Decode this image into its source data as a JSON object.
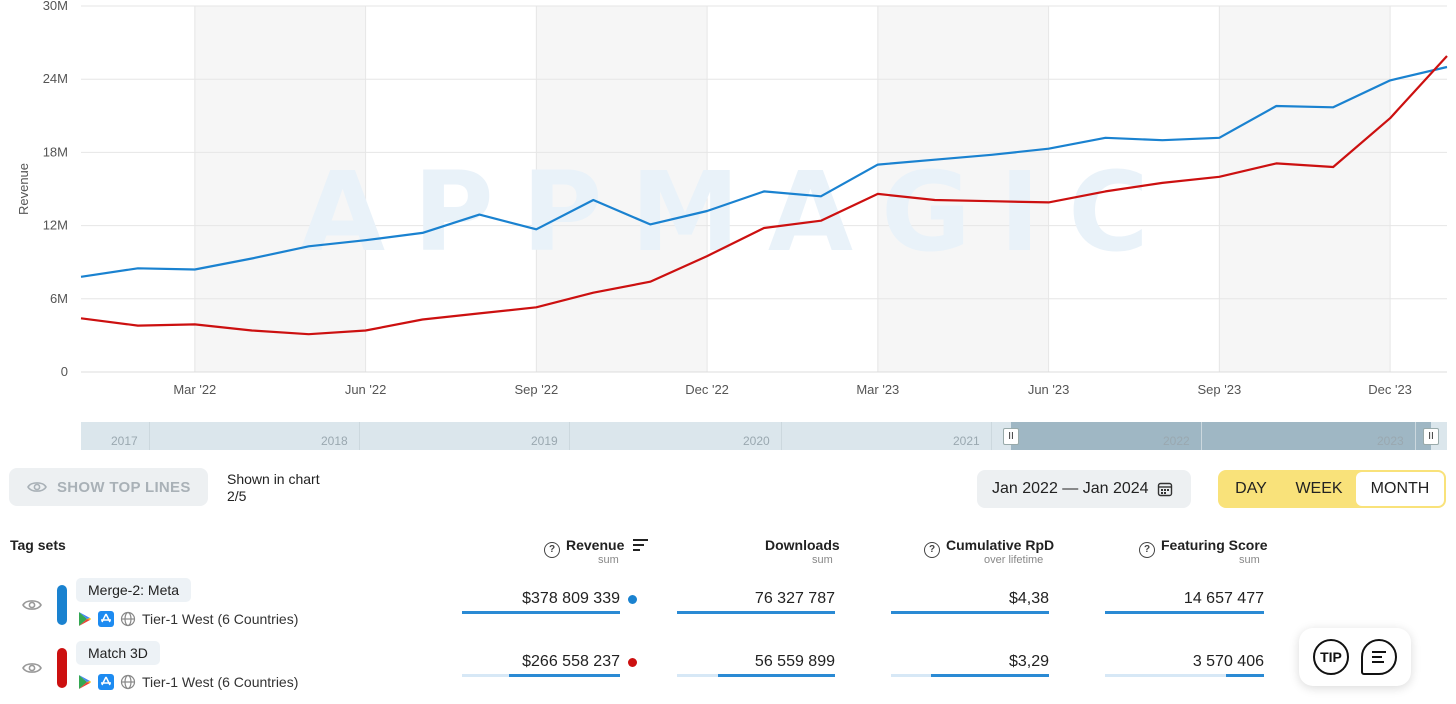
{
  "chart_data": {
    "type": "line",
    "ylabel": "Revenue",
    "ylim": [
      0,
      30000000
    ],
    "y_ticks": [
      "0",
      "6M",
      "12M",
      "18M",
      "24M",
      "30M"
    ],
    "y_tick_values": [
      0,
      6000000,
      12000000,
      18000000,
      24000000,
      30000000
    ],
    "x_tick_labels": [
      "Mar '22",
      "Jun '22",
      "Sep '22",
      "Dec '22",
      "Mar '23",
      "Jun '23",
      "Sep '23",
      "Dec '23"
    ],
    "x": [
      "2022-01",
      "2022-02",
      "2022-03",
      "2022-04",
      "2022-05",
      "2022-06",
      "2022-07",
      "2022-08",
      "2022-09",
      "2022-10",
      "2022-11",
      "2022-12",
      "2023-01",
      "2023-02",
      "2023-03",
      "2023-04",
      "2023-05",
      "2023-06",
      "2023-07",
      "2023-08",
      "2023-09",
      "2023-10",
      "2023-11",
      "2023-12",
      "2024-01"
    ],
    "series": [
      {
        "name": "Merge-2: Meta",
        "color": "#1a82d0",
        "values": [
          7.8,
          8.5,
          8.4,
          9.3,
          10.3,
          10.8,
          11.4,
          12.9,
          11.7,
          14.1,
          12.1,
          13.2,
          14.8,
          14.4,
          17.0,
          17.4,
          17.8,
          18.3,
          19.2,
          19.0,
          19.2,
          21.8,
          21.7,
          23.9,
          25.0
        ]
      },
      {
        "name": "Match 3D",
        "color": "#cc1010",
        "values": [
          4.4,
          3.8,
          3.9,
          3.4,
          3.1,
          3.4,
          4.3,
          4.8,
          5.3,
          6.5,
          7.4,
          9.5,
          11.8,
          12.4,
          14.6,
          14.1,
          14.0,
          13.9,
          14.8,
          15.5,
          16.0,
          17.1,
          16.8,
          20.8,
          25.9
        ]
      }
    ],
    "grid": true,
    "watermark": "APPMAGIC"
  },
  "navigator": {
    "years": [
      "2017",
      "2018",
      "2019",
      "2020",
      "2021",
      "2022",
      "2023"
    ],
    "handle_glyph": "II"
  },
  "controls": {
    "show_top_lines": "SHOW TOP LINES",
    "shown_in_chart_label": "Shown in chart",
    "shown_in_chart_value": "2/5",
    "date_range": "Jan 2022 — Jan 2024",
    "periods": [
      "DAY",
      "WEEK",
      "MONTH"
    ],
    "active_period": "MONTH",
    "toggle_color": "#f9e27a"
  },
  "table": {
    "tag_sets_label": "Tag sets",
    "columns": [
      {
        "label": "Revenue",
        "sub": "sum",
        "help": true
      },
      {
        "label": "Downloads",
        "sub": "sum",
        "help": false
      },
      {
        "label": "Cumulative RpD",
        "sub": "over lifetime",
        "help": true
      },
      {
        "label": "Featuring Score",
        "sub": "sum",
        "help": true
      }
    ],
    "rows": [
      {
        "name": "Merge-2: Meta",
        "meta": "Tier-1 West (6 Countries)",
        "color": "#1a82d0",
        "values": [
          "$378 809 339",
          "76 327 787",
          "$4,38",
          "14 657 477"
        ],
        "fractions": [
          1.0,
          1.0,
          1.0,
          1.0
        ]
      },
      {
        "name": "Match 3D",
        "meta": "Tier-1 West (6 Countries)",
        "color": "#cc1010",
        "values": [
          "$266 558 237",
          "56 559 899",
          "$3,29",
          "3 570 406"
        ],
        "fractions": [
          0.7,
          0.74,
          0.75,
          0.24
        ]
      }
    ]
  },
  "fab": {
    "tip_label": "TIP",
    "chat_icon": "chat-icon"
  }
}
